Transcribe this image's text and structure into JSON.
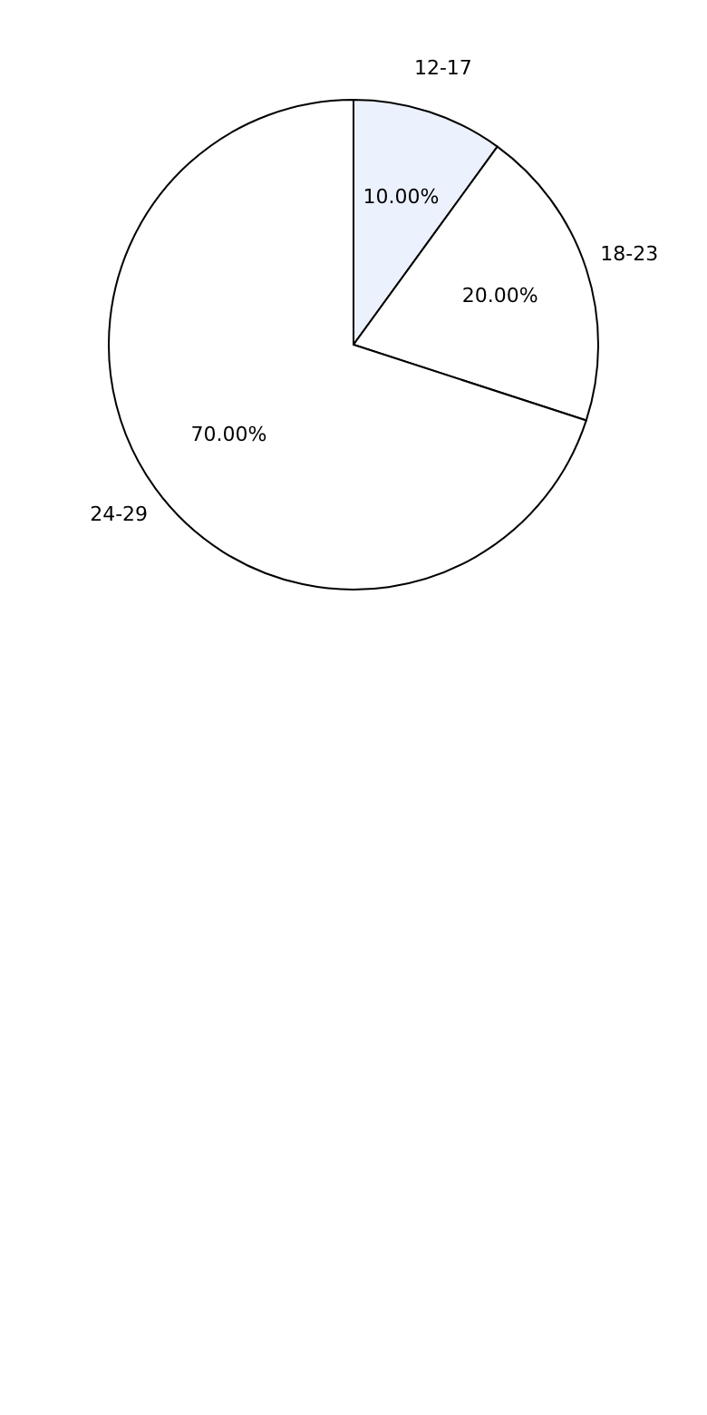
{
  "chart_data": {
    "type": "pie",
    "categories": [
      "12-17",
      "18-23",
      "24-29"
    ],
    "values": [
      10,
      20,
      70
    ],
    "colors": [
      "#ebf1fd",
      "#ffffff",
      "#ffffff"
    ],
    "value_labels": [
      "10.00%",
      "20.00%",
      "70.00%"
    ],
    "legend": false
  }
}
